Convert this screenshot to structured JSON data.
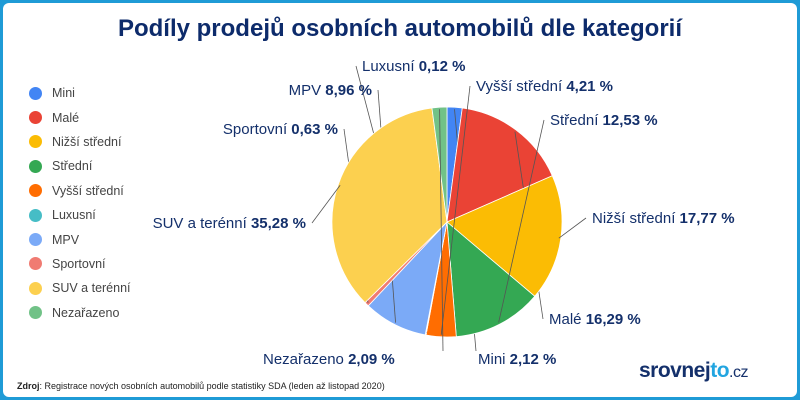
{
  "title": "Podíly prodejů osobních automobilů dle kategorií",
  "source": {
    "label": "Zdroj",
    "text": ": Registrace nových osobních automobilů podle statistiky SDA (leden až listopad 2020)"
  },
  "brand": {
    "part1": "srovnej",
    "part2": "to",
    "part3": ".cz"
  },
  "colors": {
    "frame": "#1f9bd6",
    "title": "#0d2b6b",
    "brand_accent": "#22a5e0"
  },
  "chart_data": {
    "type": "pie",
    "start_angle_deg": 0,
    "direction": "clockwise",
    "legend_position": "left",
    "value_suffix": " %",
    "slices": [
      {
        "name": "Mini",
        "value": 2.12,
        "value_label": "2,12",
        "color": "#4285f4"
      },
      {
        "name": "Malé",
        "value": 16.29,
        "value_label": "16,29",
        "color": "#ea4335"
      },
      {
        "name": "Nižší střední",
        "value": 17.77,
        "value_label": "17,77",
        "color": "#fbbc04"
      },
      {
        "name": "Střední",
        "value": 12.53,
        "value_label": "12,53",
        "color": "#34a853"
      },
      {
        "name": "Vyšší střední",
        "value": 4.21,
        "value_label": "4,21",
        "color": "#ff6d01"
      },
      {
        "name": "Luxusní",
        "value": 0.12,
        "value_label": "0,12",
        "color": "#46bdc6"
      },
      {
        "name": "MPV",
        "value": 8.96,
        "value_label": "8,96",
        "color": "#7baaf7"
      },
      {
        "name": "Sportovní",
        "value": 0.63,
        "value_label": "0,63",
        "color": "#f07b72"
      },
      {
        "name": "SUV a terénní",
        "value": 35.28,
        "value_label": "35,28",
        "color": "#fcd04f"
      },
      {
        "name": "Nezařazeno",
        "value": 2.09,
        "value_label": "2,09",
        "color": "#71c287"
      }
    ]
  }
}
